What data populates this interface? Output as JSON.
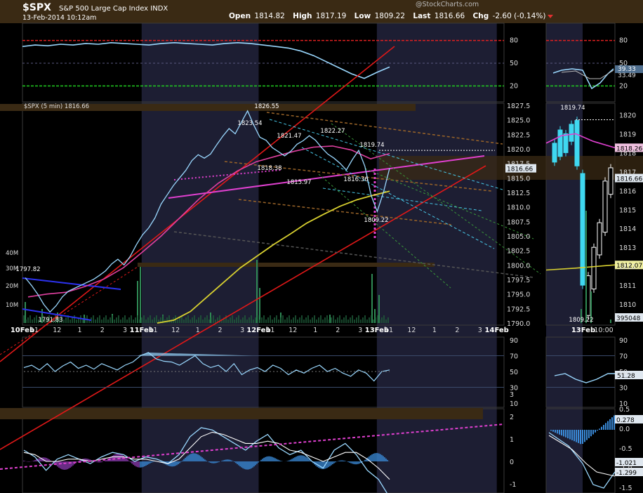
{
  "header": {
    "symbol": "$SPX",
    "name": "S&P 500 Large Cap Index",
    "exchange": "INDX",
    "timestamp": "13-Feb-2014 10:12am",
    "open_label": "Open",
    "open": "1814.82",
    "high_label": "High",
    "high": "1817.19",
    "low_label": "Low",
    "low": "1809.22",
    "last_label": "Last",
    "last": "1816.66",
    "chg_label": "Chg",
    "chg": "-2.60 (-0.14%)",
    "watermark": "@StockCharts.com",
    "chg_color": "#e03030"
  },
  "chart_data": [
    {
      "type": "line",
      "panel": "rsi_top",
      "levels": [
        80,
        50,
        20
      ],
      "ylim": [
        0,
        100
      ],
      "level_colors": {
        "80": "#e02020",
        "20": "#20d020"
      },
      "series": [
        {
          "values": [
            72,
            74,
            73,
            75,
            74,
            76,
            75,
            77,
            76,
            75,
            74,
            76,
            77,
            76,
            75,
            74,
            76,
            77,
            76,
            74,
            72,
            70,
            66,
            60,
            52,
            44,
            36,
            30,
            38,
            45
          ]
        }
      ]
    },
    {
      "type": "line",
      "panel": "price_main",
      "legend": "$SPX (5 min) 1816.66",
      "ylim": [
        1790,
        1827.5
      ],
      "yticks": [
        "1827.5",
        "1825.0",
        "1822.5",
        "1820.0",
        "1817.5",
        "1815.0",
        "1812.5",
        "1810.0",
        "1807.5",
        "1805.0",
        "1802.5",
        "1800.0",
        "1797.5",
        "1795.0",
        "1792.5",
        "1790.0"
      ],
      "xticks": [
        "10Feb",
        "11",
        "12",
        "1",
        "2",
        "3",
        "11Feb",
        "11",
        "12",
        "1",
        "2",
        "3",
        "12Feb",
        "11",
        "12",
        "1",
        "2",
        "3",
        "13Feb",
        "11",
        "12",
        "1",
        "2",
        "3",
        "14Feb"
      ],
      "bold_xticks": [
        "10Feb",
        "11Feb",
        "12Feb",
        "13Feb",
        "14Feb"
      ],
      "annotations": [
        "1826.55",
        "1823.54",
        "1821.47",
        "1822.27",
        "1819.74",
        "1818.38",
        "1815.97",
        "1816.36",
        "1809.22",
        "1797.82",
        "1791.83"
      ],
      "volume_labels": [
        "40M",
        "30M",
        "20M",
        "10M"
      ],
      "price": [
        1797.8,
        1796.5,
        1795.0,
        1793.2,
        1791.9,
        1793.0,
        1794.5,
        1795.5,
        1796.0,
        1796.5,
        1797.0,
        1797.5,
        1798.2,
        1799.0,
        1800.2,
        1801.0,
        1800.0,
        1801.5,
        1803.5,
        1805.2,
        1806.4,
        1808.1,
        1810.5,
        1812.1,
        1813.7,
        1815.0,
        1816.3,
        1818.0,
        1819.0,
        1818.4,
        1819.1,
        1820.7,
        1822.2,
        1823.5,
        1822.6,
        1824.6,
        1826.55,
        1824.1,
        1822.0,
        1821.47,
        1820.2,
        1819.5,
        1818.8,
        1819.6,
        1820.8,
        1821.4,
        1822.27,
        1821.5,
        1820.2,
        1819.1,
        1818.4,
        1817.5,
        1816.36,
        1818.2,
        1819.74,
        1817.0,
        1812.0,
        1809.22,
        1812.5,
        1816.66
      ],
      "price_tag": "1816.66",
      "series": [
        {
          "name": "ma_pink",
          "color": "#e040a0",
          "values": [
            1794.5,
            1795.0,
            1795.3,
            1796.3,
            1797.6,
            1799.5,
            1802.2,
            1805.0,
            1808.2,
            1811.4,
            1814.1,
            1816.2,
            1817.8,
            1818.7,
            1819.6,
            1820.3,
            1820.5,
            1819.8,
            1818.3,
            1819.2
          ]
        },
        {
          "name": "ma_yellow",
          "color": "#d8d030",
          "values": [
            1790.0,
            1790.5,
            1792.0,
            1794.5,
            1797.0,
            1799.5,
            1801.5,
            1803.5,
            1805.3,
            1807.2,
            1808.7,
            1810.1,
            1811.2,
            1812.0,
            1812.7
          ]
        }
      ]
    },
    {
      "type": "line",
      "panel": "price_inset",
      "xticks": [
        "13Feb",
        "10:00"
      ],
      "ylim": [
        1809,
        1820.5
      ],
      "yticks": [
        "1820",
        "1819",
        "1818",
        "1817",
        "1816",
        "1815",
        "1814",
        "1813",
        "1812",
        "1811",
        "1810"
      ],
      "annotations": [
        "1819.74",
        "1809.22"
      ],
      "tags": [
        "1818.26",
        "1816.66",
        "1812.07",
        "395048"
      ]
    },
    {
      "type": "line",
      "panel": "rsi_inset",
      "levels": [
        80,
        50,
        20
      ],
      "tags": [
        "39.33",
        "33.49"
      ]
    },
    {
      "type": "area",
      "panel": "rsi_mid",
      "ylim": [
        10,
        90
      ],
      "yticks": [
        "90",
        "70",
        "50",
        "30",
        "10"
      ],
      "tags": [
        "51.28"
      ],
      "series": [
        {
          "values": [
            55,
            58,
            52,
            60,
            50,
            57,
            62,
            54,
            58,
            53,
            60,
            56,
            52,
            58,
            62,
            70,
            74,
            66,
            63,
            62,
            58,
            64,
            70,
            60,
            55,
            58,
            50,
            60,
            46,
            52,
            55,
            50,
            58,
            54,
            46,
            52,
            48,
            54,
            58,
            50,
            54,
            48,
            44,
            52,
            48,
            38,
            50,
            52
          ]
        }
      ]
    },
    {
      "type": "line",
      "panel": "macd",
      "yticks": [
        "3",
        "2",
        "1",
        "0",
        "-1",
        "-2"
      ],
      "tags": [
        "0.278",
        "-1.021",
        "-1.299"
      ],
      "inset_yticks": [
        "0.5",
        "0.0",
        "-0.5",
        "-1.0",
        "-1.5"
      ],
      "series": [
        {
          "name": "macd_line",
          "values": [
            0.5,
            0.2,
            -0.4,
            0.1,
            0.3,
            0.1,
            -0.1,
            0.2,
            0.4,
            0.3,
            0.0,
            0.2,
            0.1,
            -0.1,
            0.3,
            1.1,
            1.5,
            1.4,
            1.1,
            0.8,
            0.5,
            0.9,
            1.2,
            0.6,
            0.3,
            0.5,
            0.0,
            -0.3,
            0.5,
            0.8,
            0.3,
            -0.4,
            -0.8,
            -1.6
          ]
        },
        {
          "name": "signal_line",
          "values": [
            0.4,
            0.3,
            0.0,
            0.0,
            0.1,
            0.1,
            0.0,
            0.1,
            0.2,
            0.2,
            0.1,
            0.1,
            0.0,
            -0.1,
            0.1,
            0.6,
            1.1,
            1.3,
            1.2,
            1.0,
            0.8,
            0.8,
            0.9,
            0.8,
            0.5,
            0.4,
            0.2,
            0.0,
            0.2,
            0.4,
            0.4,
            0.1,
            -0.3,
            -0.8
          ]
        }
      ]
    }
  ],
  "colors": {
    "band": "#3a2a14",
    "shade": "#1d1e33",
    "trend_red": "#e01818",
    "channel_pink": "#e040d0",
    "cyan": "#48c8e8",
    "blue_line": "#2c32f0",
    "price_line": "#9ad8ff",
    "white_line": "#ffffff"
  }
}
